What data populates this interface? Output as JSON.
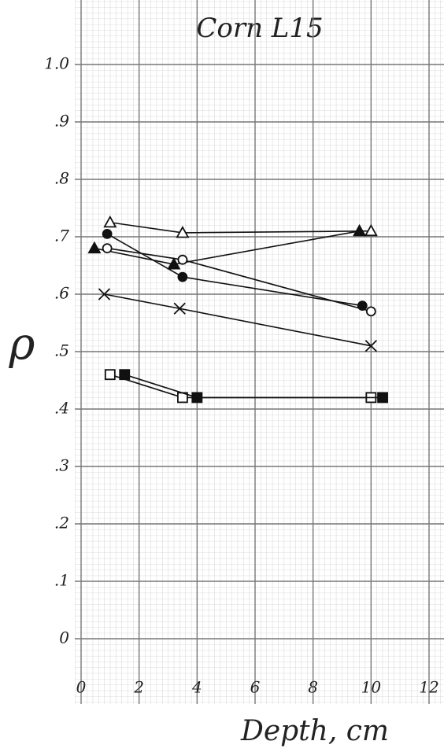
{
  "chart_data": {
    "type": "line",
    "title": "Corn L15",
    "x_label": "Depth, cm",
    "y_label": "ρ",
    "xlim": [
      0,
      12
    ],
    "ylim": [
      0,
      1.0
    ],
    "xticks": [
      0,
      2,
      4,
      6,
      8,
      10,
      12
    ],
    "yticks": [
      0,
      {
        "value": 0.1,
        "label": ".1"
      },
      {
        "value": 0.2,
        "label": ".2"
      },
      {
        "value": 0.3,
        "label": ".3"
      },
      {
        "value": 0.4,
        "label": ".4"
      },
      {
        "value": 0.5,
        "label": ".5"
      },
      {
        "value": 0.6,
        "label": ".6"
      },
      {
        "value": 0.7,
        "label": ".7"
      },
      {
        "value": 0.8,
        "label": ".8"
      },
      {
        "value": 0.9,
        "label": ".9"
      },
      {
        "value": 1.0,
        "label": "1.0"
      }
    ],
    "grid": true,
    "series": [
      {
        "marker": "triangle-open",
        "color": "#111",
        "x": [
          1.0,
          3.5,
          10.0
        ],
        "values": [
          0.725,
          0.707,
          0.71
        ]
      },
      {
        "marker": "triangle-filled",
        "color": "#111",
        "x": [
          0.46,
          3.2,
          9.6
        ],
        "values": [
          0.68,
          0.652,
          0.71
        ]
      },
      {
        "marker": "circle-open",
        "color": "#111",
        "x": [
          0.9,
          3.5,
          10.0
        ],
        "values": [
          0.68,
          0.66,
          0.57
        ]
      },
      {
        "marker": "circle-filled",
        "color": "#111",
        "x": [
          0.9,
          3.5,
          9.7
        ],
        "values": [
          0.705,
          0.63,
          0.58
        ]
      },
      {
        "marker": "x",
        "color": "#111",
        "x": [
          0.8,
          3.4,
          10.0
        ],
        "values": [
          0.6,
          0.575,
          0.51
        ]
      },
      {
        "marker": "square-open",
        "color": "#111",
        "x": [
          1.0,
          3.5,
          10.0
        ],
        "values": [
          0.46,
          0.42,
          0.42
        ]
      },
      {
        "marker": "square-filled",
        "color": "#111",
        "x": [
          1.5,
          4.0,
          10.4
        ],
        "values": [
          0.46,
          0.42,
          0.42
        ]
      }
    ]
  }
}
